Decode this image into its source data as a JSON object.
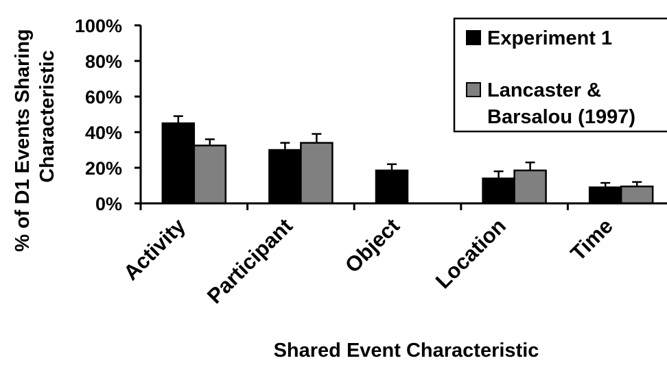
{
  "chart_data": {
    "type": "bar",
    "title": "",
    "xlabel": "Shared Event Characteristic",
    "ylabel_lines": [
      "% of D1 Events Sharing",
      "Characteristic"
    ],
    "categories": [
      "Activity",
      "Participant",
      "Object",
      "Location",
      "Time"
    ],
    "y_ticks": [
      "0%",
      "20%",
      "40%",
      "60%",
      "80%",
      "100%"
    ],
    "ylim": [
      0,
      100
    ],
    "grid": false,
    "legend_position": "top-right",
    "series": [
      {
        "name": "Experiment 1",
        "color": "#000000",
        "values": [
          45,
          30,
          18.5,
          14,
          9
        ],
        "errors": [
          4,
          4,
          3.5,
          4,
          2.5
        ]
      },
      {
        "name_lines": [
          "Lancaster &",
          "Barsalou (1997)"
        ],
        "color": "#808080",
        "values": [
          32.5,
          34,
          null,
          18.5,
          9.5
        ],
        "errors": [
          3.5,
          5,
          null,
          4.5,
          2.5
        ]
      }
    ]
  }
}
